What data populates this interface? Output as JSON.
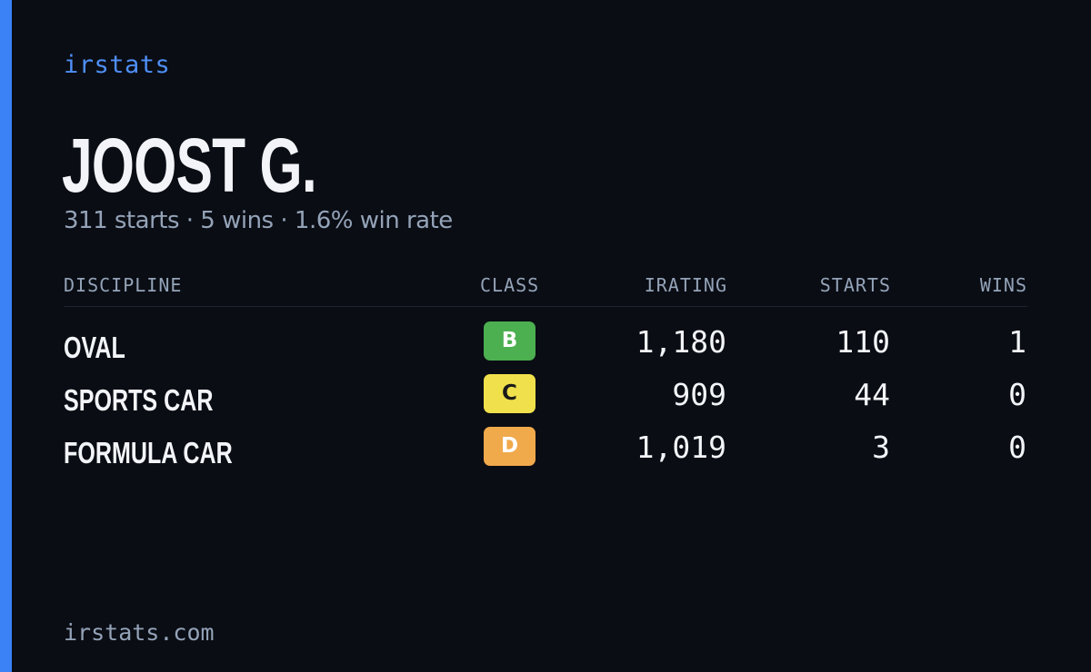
{
  "brand": "irstats",
  "driver": {
    "name": "JOOST G.",
    "summary": "311 starts · 5 wins · 1.6% win rate"
  },
  "table": {
    "headers": {
      "discipline": "DISCIPLINE",
      "class": "CLASS",
      "irating": "IRATING",
      "starts": "STARTS",
      "wins": "WINS"
    },
    "rows": [
      {
        "discipline": "OVAL",
        "class": "B",
        "class_color": "#4caf50",
        "class_text_color": "#ffffff",
        "irating": "1,180",
        "starts": "110",
        "wins": "1"
      },
      {
        "discipline": "SPORTS CAR",
        "class": "C",
        "class_color": "#f0e04b",
        "class_text_color": "#1a1a1a",
        "irating": "909",
        "starts": "44",
        "wins": "0"
      },
      {
        "discipline": "FORMULA CAR",
        "class": "D",
        "class_color": "#f0a94b",
        "class_text_color": "#ffffff",
        "irating": "1,019",
        "starts": "3",
        "wins": "0"
      }
    ]
  },
  "footer": "irstats.com",
  "colors": {
    "accent": "#3b82f6",
    "background": "#0a0d14",
    "muted_text": "#94a3b8"
  }
}
